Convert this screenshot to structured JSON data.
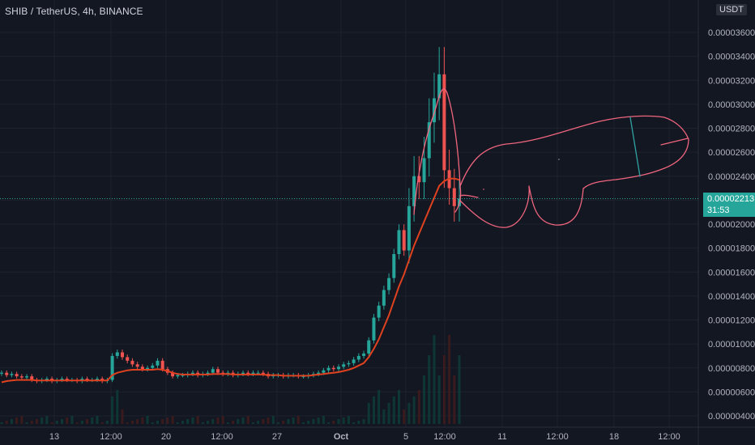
{
  "header": {
    "symbol_title": "SHIB / TetherUS, 4h, BINANCE"
  },
  "axis": {
    "currency": "USDT"
  },
  "last_price": {
    "value": "0.00002213",
    "countdown": "31:53"
  },
  "colors": {
    "background": "#131722",
    "up": "#26a69a",
    "down": "#ef5350",
    "ma": "#e0411f",
    "drawing": "#f0657e",
    "drawing_alt": "#2fa3a3",
    "price_line": "#26a69a"
  },
  "chart_data": {
    "type": "candlestick",
    "title": "SHIB / TetherUS, 4h, BINANCE",
    "xlabel": "",
    "ylabel": "",
    "y_ticks": [
      "0.00000400",
      "0.00000600",
      "0.00000800",
      "0.00001000",
      "0.00001200",
      "0.00001400",
      "0.00001600",
      "0.00001800",
      "0.00002000",
      "0.00002200",
      "0.00002400",
      "0.00002600",
      "0.00002800",
      "0.00003000",
      "0.00003200",
      "0.00003400",
      "0.00003600"
    ],
    "y_tick_values": [
      4e-06,
      6e-06,
      8e-06,
      1e-05,
      1.2e-05,
      1.4e-05,
      1.6e-05,
      1.8e-05,
      2e-05,
      2.2e-05,
      2.4e-05,
      2.6e-05,
      2.8e-05,
      3e-05,
      3.2e-05,
      3.4e-05,
      3.6e-05
    ],
    "ylim": [
      3.4e-06,
      3.78e-05
    ],
    "x_ticks": [
      "13",
      "12:00",
      "20",
      "12:00",
      "27",
      "Oct",
      "5",
      "12:00",
      "11",
      "12:00",
      "18",
      "12:00"
    ],
    "grid": true,
    "last_price": 2.213e-05,
    "close_series": [
      7.6e-06,
      7.4e-06,
      7.5e-06,
      7.3e-06,
      7.2e-06,
      7.3e-06,
      7e-06,
      6.9e-06,
      7e-06,
      7.1e-06,
      6.9e-06,
      7e-06,
      7.1e-06,
      7e-06,
      7e-06,
      6.9e-06,
      7.1e-06,
      7e-06,
      7e-06,
      7.1e-06,
      6.9e-06,
      7e-06,
      9e-06,
      9.3e-06,
      8.9e-06,
      8.6e-06,
      8.3e-06,
      8.1e-06,
      7.9e-06,
      8e-06,
      8.2e-06,
      8.6e-06,
      7.9e-06,
      7.6e-06,
      7.3e-06,
      7.4e-06,
      7.4e-06,
      7.5e-06,
      7.6e-06,
      7.4e-06,
      7.5e-06,
      7.6e-06,
      7.9e-06,
      7.6e-06,
      7.5e-06,
      7.6e-06,
      7.4e-06,
      7.5e-06,
      7.6e-06,
      7.5e-06,
      7.6e-06,
      7.6e-06,
      7.5e-06,
      7.3e-06,
      7.4e-06,
      7.4e-06,
      7.3e-06,
      7.4e-06,
      7.4e-06,
      7.3e-06,
      7.3e-06,
      7.4e-06,
      7.5e-06,
      7.6e-06,
      7.8e-06,
      8e-06,
      7.9e-06,
      8.1e-06,
      8.3e-06,
      8.4e-06,
      8.7e-06,
      9e-06,
      9.2e-06,
      1.03e-05,
      1.22e-05,
      1.32e-05,
      1.45e-05,
      1.55e-05,
      1.75e-05,
      1.95e-05,
      1.78e-05,
      2.15e-05,
      2.4e-05,
      2.35e-05,
      2.55e-05,
      2.85e-05,
      3.05e-05,
      3.25e-05,
      2.45e-05,
      2.3e-05,
      2.15e-05,
      2.213e-05
    ],
    "ma_series": [
      6.8e-06,
      6.9e-06,
      6.95e-06,
      7e-06,
      7e-06,
      7e-06,
      7e-06,
      6.95e-06,
      6.95e-06,
      6.95e-06,
      6.95e-06,
      6.95e-06,
      6.95e-06,
      6.95e-06,
      6.95e-06,
      6.95e-06,
      6.95e-06,
      6.95e-06,
      6.95e-06,
      6.95e-06,
      6.95e-06,
      6.95e-06,
      7.4e-06,
      7.6e-06,
      7.7e-06,
      7.8e-06,
      7.85e-06,
      7.85e-06,
      7.85e-06,
      7.85e-06,
      7.85e-06,
      7.9e-06,
      7.85e-06,
      7.75e-06,
      7.6e-06,
      7.5e-06,
      7.45e-06,
      7.45e-06,
      7.45e-06,
      7.45e-06,
      7.45e-06,
      7.45e-06,
      7.5e-06,
      7.5e-06,
      7.5e-06,
      7.5e-06,
      7.45e-06,
      7.45e-06,
      7.45e-06,
      7.45e-06,
      7.45e-06,
      7.45e-06,
      7.45e-06,
      7.4e-06,
      7.4e-06,
      7.4e-06,
      7.35e-06,
      7.35e-06,
      7.35e-06,
      7.35e-06,
      7.35e-06,
      7.35e-06,
      7.4e-06,
      7.45e-06,
      7.5e-06,
      7.55e-06,
      7.6e-06,
      7.65e-06,
      7.75e-06,
      7.85e-06,
      8e-06,
      8.2e-06,
      8.4e-06,
      8.9e-06,
      9.6e-06,
      1.04e-05,
      1.14e-05,
      1.24e-05,
      1.36e-05,
      1.48e-05,
      1.58e-05,
      1.7e-05,
      1.82e-05,
      1.92e-05,
      2.02e-05,
      2.12e-05,
      2.22e-05,
      2.32e-05,
      2.36e-05,
      2.38e-05,
      2.38e-05,
      2.37e-05
    ]
  }
}
